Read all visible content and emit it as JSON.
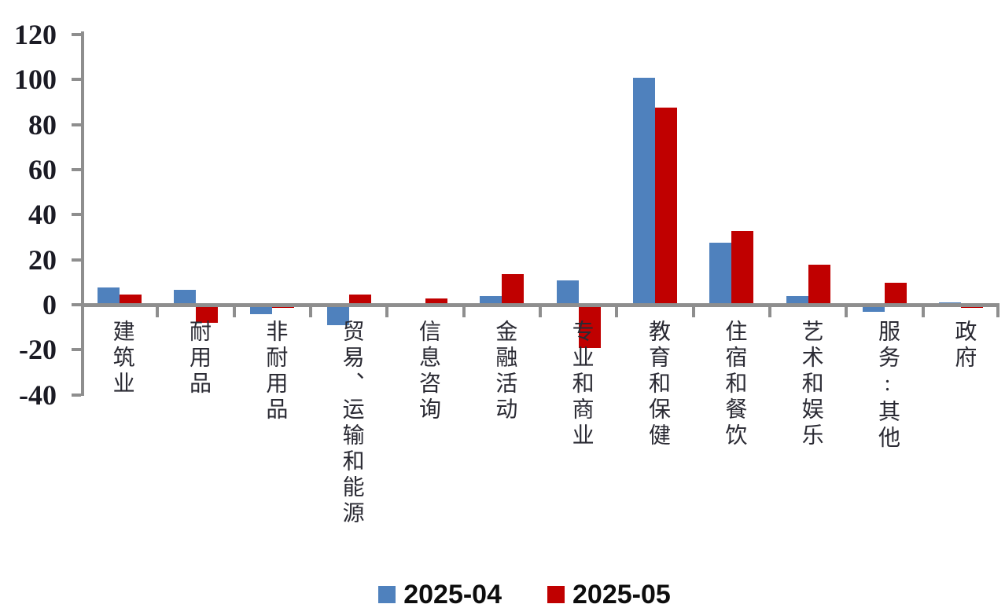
{
  "chart_data": {
    "type": "bar",
    "categories": [
      "建筑业",
      "耐用品",
      "非耐用品",
      "贸易、运输和能源",
      "信息咨询",
      "金融活动",
      "专业和商业",
      "教育和保健",
      "住宿和餐饮",
      "艺术和娱乐",
      "服务:其他",
      "政府"
    ],
    "series": [
      {
        "name": "2025-04",
        "color": "#4F81BD",
        "values": [
          7,
          6,
          -3,
          -8,
          0,
          3,
          10,
          100,
          27,
          3,
          -2,
          0.5
        ]
      },
      {
        "name": "2025-05",
        "color": "#C00000",
        "values": [
          4,
          -7,
          -0.5,
          4,
          2,
          13,
          -18,
          87,
          32,
          17,
          9,
          -0.5
        ]
      }
    ],
    "title": "",
    "xlabel": "",
    "ylabel": "",
    "ylim": [
      -40,
      120
    ],
    "ytick_step": 20,
    "yticks": [
      120,
      100,
      80,
      60,
      40,
      20,
      0,
      -20,
      -40
    ],
    "grid": false,
    "legend_position": "bottom",
    "colors": {
      "axis": "#8e8e8e",
      "tick_label": "#1b1b24",
      "category_label": "#2a2a33",
      "legend_text": "#0d0d0d",
      "background": "#ffffff"
    }
  }
}
